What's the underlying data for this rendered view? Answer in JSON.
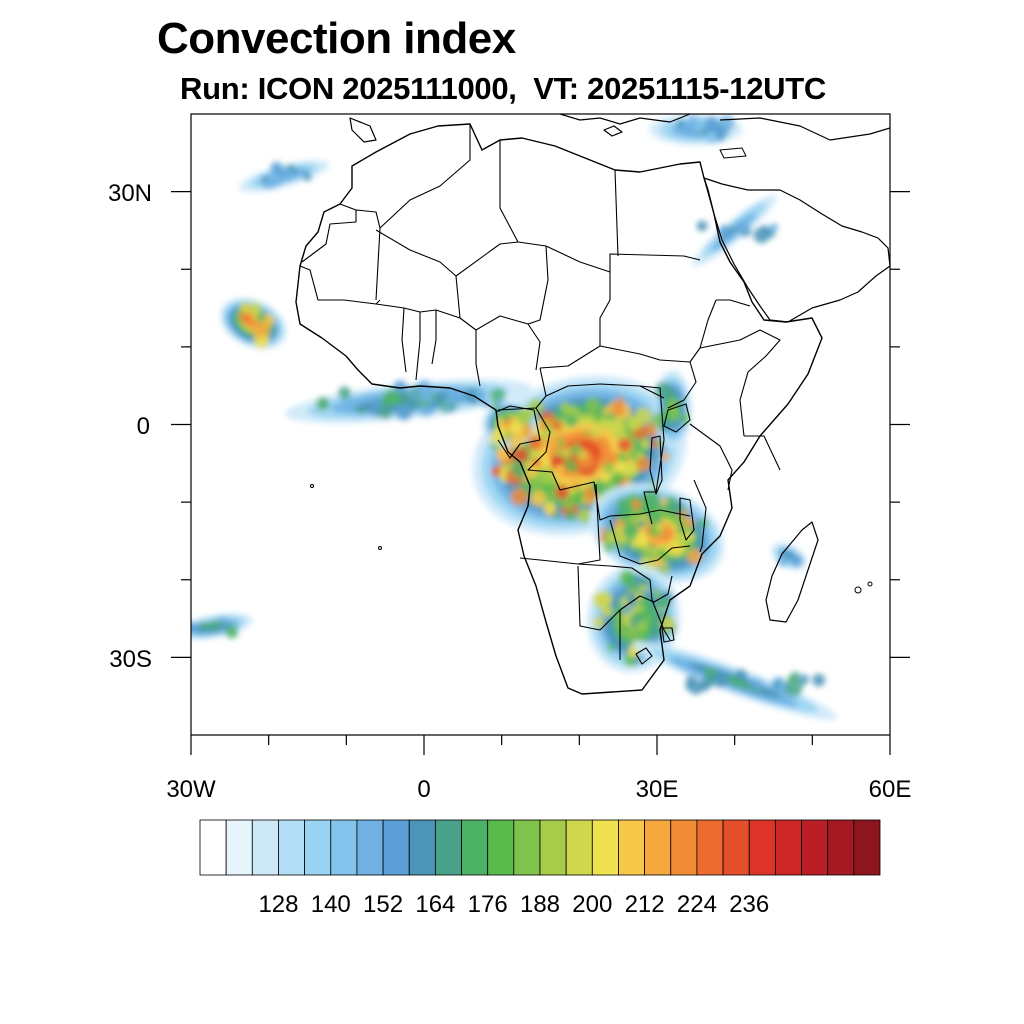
{
  "title": "Convection index",
  "subtitle": "Run: ICON 2025111000,  VT: 20251115-12UTC",
  "map": {
    "region": "Africa",
    "lon_range": [
      -30,
      60
    ],
    "lat_range": [
      -40,
      40
    ],
    "lat_ticks": [
      "30N",
      "0",
      "30S"
    ],
    "lon_ticks": [
      "30W",
      "0",
      "30E",
      "60E"
    ]
  },
  "colorbar": {
    "labels": [
      "128",
      "140",
      "152",
      "164",
      "176",
      "188",
      "200",
      "212",
      "224",
      "236"
    ],
    "colors": [
      "#ffffff",
      "#e6f4fc",
      "#cde9f8",
      "#b4def5",
      "#9ad4f3",
      "#84c4ec",
      "#6fb1e3",
      "#5b9fd6",
      "#4a95b8",
      "#48a28a",
      "#4cb366",
      "#5abb4d",
      "#7fc24c",
      "#a6cc4a",
      "#cfd74c",
      "#efe14f",
      "#f8c84a",
      "#f6a83f",
      "#f28b35",
      "#ec6b2e",
      "#e44e2b",
      "#dc3429",
      "#cd2728",
      "#ba1f26",
      "#a51a22",
      "#8e151e"
    ]
  },
  "chart_data": {
    "type": "heatmap",
    "title": "Convection index",
    "subtitle": "Run: ICON 2025111000,  VT: 20251115-12UTC",
    "x_range": [
      -30,
      60
    ],
    "y_range": [
      -40,
      40
    ],
    "xticks": [
      "30W",
      "0",
      "30E",
      "60E"
    ],
    "yticks": [
      "30N",
      "0",
      "30S"
    ],
    "colorbar_levels": [
      128,
      140,
      152,
      164,
      176,
      188,
      200,
      212,
      224,
      236
    ],
    "regions": [
      {
        "name": "congo-basin",
        "lon": 20,
        "lat": -4,
        "peak": 224
      },
      {
        "name": "gabon-cameroon",
        "lon": 11,
        "lat": 0,
        "peak": 212
      },
      {
        "name": "zambia-mozambique",
        "lon": 30,
        "lat": -14,
        "peak": 212
      },
      {
        "name": "southern-africa",
        "lon": 27,
        "lat": -25,
        "peak": 188
      },
      {
        "name": "atlantic-cape-verde",
        "lon": -22,
        "lat": 13,
        "peak": 212
      },
      {
        "name": "gulf-of-guinea-band",
        "lon": -2,
        "lat": 3,
        "peak": 164
      },
      {
        "name": "east-african-lakes",
        "lon": 32,
        "lat": 2,
        "peak": 176
      },
      {
        "name": "madagascar-channel",
        "lon": 47,
        "lat": -17,
        "peak": 152
      },
      {
        "name": "indian-ocean-band",
        "lon": 40,
        "lat": -33,
        "peak": 164
      },
      {
        "name": "south-atlantic",
        "lon": -27,
        "lat": -26,
        "peak": 164
      },
      {
        "name": "red-sea-arabia",
        "lon": 40,
        "lat": 25,
        "peak": 152
      },
      {
        "name": "mediterranean",
        "lon": 35,
        "lat": 38,
        "peak": 152
      },
      {
        "name": "north-atlantic",
        "lon": -18,
        "lat": 32,
        "peak": 152
      }
    ]
  }
}
